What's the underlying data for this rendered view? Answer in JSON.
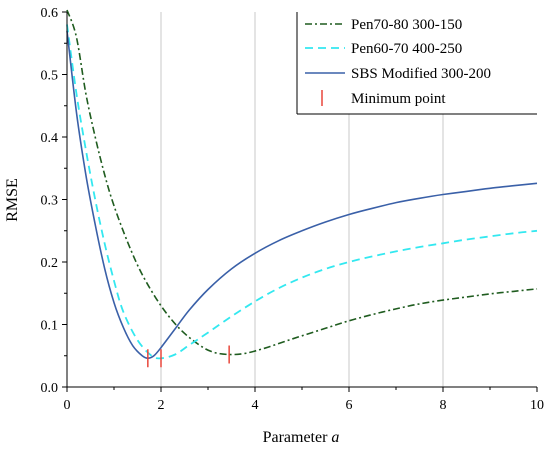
{
  "chart_data": {
    "type": "line",
    "title": "",
    "xlabel": "Parameter",
    "xlabel_symbol": "a",
    "ylabel": "RMSE",
    "xlim": [
      0,
      10
    ],
    "ylim": [
      0,
      0.6
    ],
    "xticks": [
      "0",
      "2",
      "4",
      "6",
      "8",
      "10"
    ],
    "yticks": [
      "0.0",
      "0.1",
      "0.2",
      "0.3",
      "0.4",
      "0.5",
      "0.6"
    ],
    "grid": "vertical",
    "legend_position": "top-right",
    "series": [
      {
        "name": "Pen70-80 300-150",
        "color": "#1f5c1f",
        "style": "dashdot",
        "x": [
          0.0,
          0.2,
          0.4,
          0.6,
          0.8,
          1.0,
          1.3,
          1.6,
          2.0,
          2.4,
          2.8,
          3.1,
          3.45,
          3.8,
          4.2,
          4.6,
          5.0,
          5.5,
          6.0,
          6.5,
          7.0,
          7.5,
          8.0,
          8.5,
          9.0,
          9.5,
          10.0
        ],
        "y": [
          0.62,
          0.56,
          0.47,
          0.4,
          0.34,
          0.29,
          0.23,
          0.18,
          0.13,
          0.093,
          0.068,
          0.056,
          0.052,
          0.054,
          0.062,
          0.072,
          0.082,
          0.094,
          0.106,
          0.116,
          0.125,
          0.133,
          0.139,
          0.144,
          0.149,
          0.153,
          0.157
        ]
      },
      {
        "name": "Pen60-70 400-250",
        "color": "#33e8f0",
        "style": "dashed",
        "x": [
          0.0,
          0.2,
          0.4,
          0.6,
          0.8,
          1.0,
          1.2,
          1.5,
          1.8,
          2.0,
          2.3,
          2.6,
          3.0,
          3.5,
          4.0,
          4.5,
          5.0,
          5.5,
          6.0,
          6.5,
          7.0,
          7.5,
          8.0,
          8.5,
          9.0,
          9.5,
          10.0
        ],
        "y": [
          0.58,
          0.47,
          0.38,
          0.3,
          0.23,
          0.17,
          0.12,
          0.075,
          0.05,
          0.046,
          0.052,
          0.067,
          0.087,
          0.113,
          0.137,
          0.158,
          0.175,
          0.189,
          0.2,
          0.209,
          0.217,
          0.224,
          0.23,
          0.236,
          0.241,
          0.246,
          0.25
        ]
      },
      {
        "name": "SBS Modified 300-200",
        "color": "#3a60a8",
        "style": "solid",
        "x": [
          0.0,
          0.2,
          0.4,
          0.6,
          0.8,
          1.0,
          1.2,
          1.4,
          1.6,
          1.72,
          1.85,
          2.0,
          2.3,
          2.6,
          3.0,
          3.5,
          4.0,
          4.5,
          5.0,
          5.5,
          6.0,
          6.5,
          7.0,
          7.5,
          8.0,
          8.5,
          9.0,
          9.5,
          10.0
        ],
        "y": [
          0.57,
          0.44,
          0.34,
          0.26,
          0.19,
          0.135,
          0.095,
          0.066,
          0.05,
          0.046,
          0.05,
          0.063,
          0.093,
          0.123,
          0.156,
          0.189,
          0.214,
          0.234,
          0.25,
          0.264,
          0.276,
          0.286,
          0.295,
          0.302,
          0.308,
          0.313,
          0.318,
          0.322,
          0.326
        ]
      }
    ],
    "minimum_points": {
      "name": "Minimum point",
      "color": "#e8463a",
      "x": [
        1.72,
        2.0,
        3.45
      ],
      "y": [
        0.046,
        0.046,
        0.052
      ]
    }
  }
}
